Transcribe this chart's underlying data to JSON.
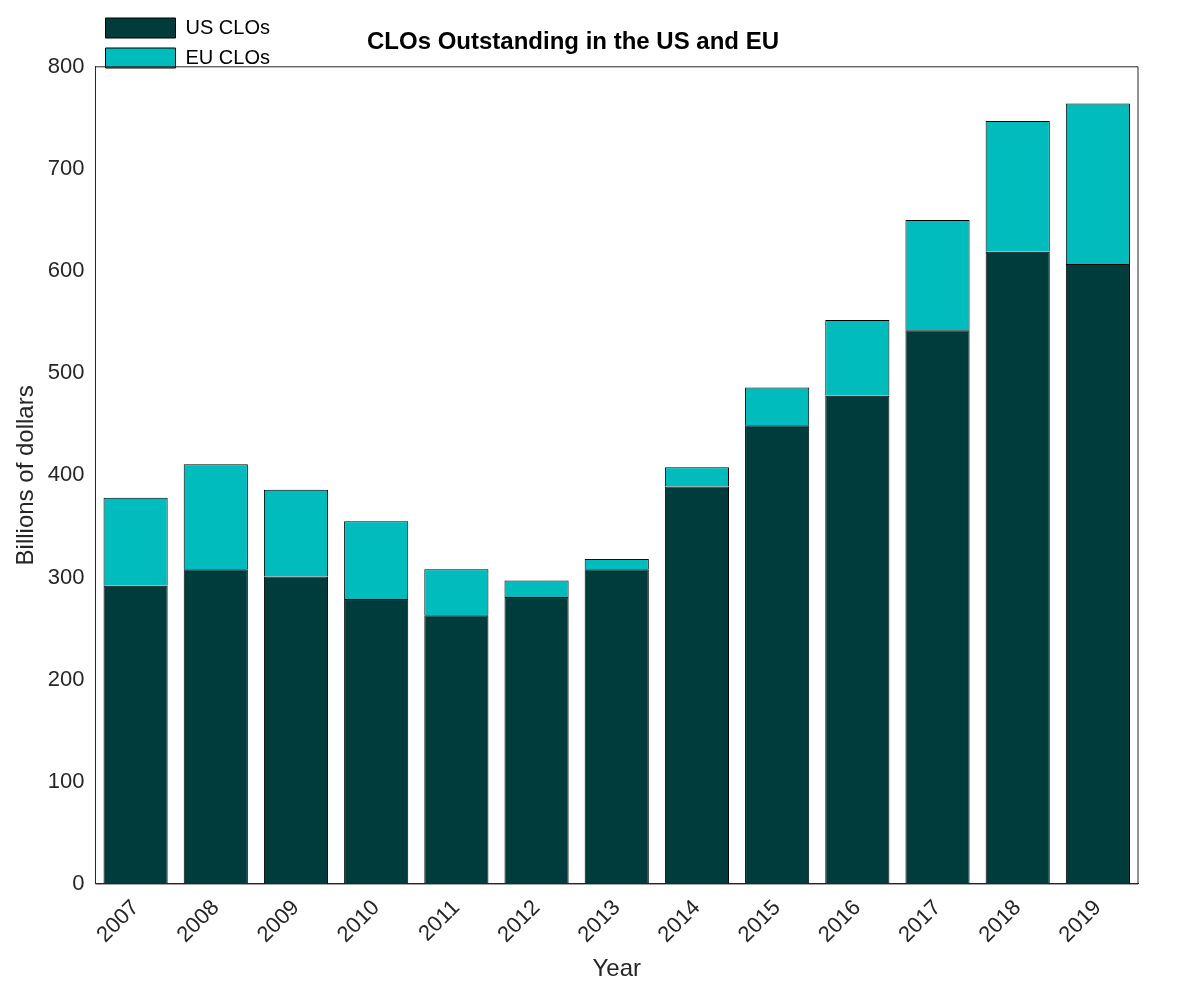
{
  "chart_data": {
    "type": "bar",
    "title": "CLOs Outstanding in the US and EU",
    "xlabel": "Year",
    "ylabel": "Billions of dollars",
    "categories": [
      "2007",
      "2008",
      "2009",
      "2010",
      "2011",
      "2012",
      "2013",
      "2014",
      "2015",
      "2016",
      "2017",
      "2018",
      "2019"
    ],
    "stacked": true,
    "series": [
      {
        "name": "US CLOs",
        "color": "#003c3c",
        "values": [
          292,
          308,
          301,
          279,
          263,
          281,
          308,
          389,
          449,
          478,
          542,
          619,
          607
        ]
      },
      {
        "name": "EU CLOs",
        "color": "#00bcbc",
        "values": [
          86,
          103,
          85,
          76,
          45,
          16,
          10,
          19,
          37,
          74,
          108,
          128,
          157
        ]
      }
    ],
    "ylim": [
      0,
      800
    ],
    "yticks": [
      0,
      100,
      200,
      300,
      400,
      500,
      600,
      700,
      800
    ],
    "grid": false,
    "legend": "top left"
  }
}
